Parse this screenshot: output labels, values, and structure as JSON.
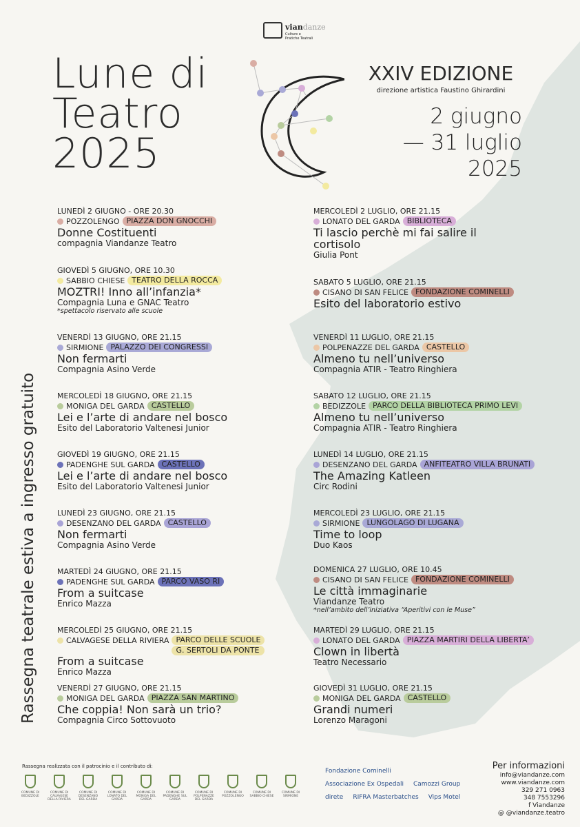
{
  "logo": {
    "name_a": "vian",
    "name_b": "danze",
    "line1": "Culture e",
    "line2": "Pratiche Teatrali"
  },
  "title": {
    "line1": "Lune di",
    "line2": "Teatro",
    "line3": "2025"
  },
  "edition": "XXIV EDIZIONE",
  "direction": "direzione artistica Faustino Ghirardini",
  "dates": {
    "line1": "2 giugno",
    "line2": "— 31 luglio",
    "line3": "2025"
  },
  "vertical_text": "Rassegna teatrale estiva a ingresso gratuito",
  "colors": {
    "sea": "#dfe5e1",
    "pozzolengo": "#d9ada4",
    "sabbio": "#f3ea9f",
    "sirmione": "#a9a9d6",
    "moniga": "#b9cc9c",
    "padenghe": "#6c72b8",
    "calvagese": "#ede3a8",
    "lonato": "#d8aed8",
    "cisano": "#be8b81",
    "polpenazze": "#ecc7a6",
    "bedizzole": "#b3d3a5"
  },
  "events_left": [
    {
      "date": "LUNEDÌ 2 GIUGNO - ORE 20.30",
      "place": "POZZOLENGO",
      "venues": [
        "PIAZZA DON GNOCCHI"
      ],
      "color": "#d9ada4",
      "title": "Donne Costituenti",
      "company": "compagnia Viandanze Teatro"
    },
    {
      "date": "GIOVEDÌ 5 GIUGNO, ORE 10.30",
      "place": "SABBIO CHIESE",
      "venues": [
        "TEATRO DELLA ROCCA"
      ],
      "color": "#f3ea9f",
      "title": "MOZTRI! Inno all’infanzia*",
      "company": "Compagnia Luna e GNAC Teatro",
      "note": "*spettacolo riservato alle scuole"
    },
    {
      "date": "VENERDÌ 13 GIUGNO, ORE 21.15",
      "place": "SIRMIONE",
      "venues": [
        "PALAZZO DEI CONGRESSI"
      ],
      "color": "#a9a9d6",
      "title": "Non fermarti",
      "company": "Compagnia Asino Verde"
    },
    {
      "date": "MERCOLEDÌ 18 GIUGNO, ORE 21.15",
      "place": "MONIGA DEL GARDA",
      "venues": [
        "CASTELLO"
      ],
      "color": "#b9cc9c",
      "title": "Lei e l’arte di andare nel bosco",
      "company": "Esito del Laboratorio Valtenesi Junior"
    },
    {
      "date": "GIOVEDÌ 19 GIUGNO, ORE 21.15",
      "place": "PADENGHE SUL GARDA",
      "venues": [
        "CASTELLO"
      ],
      "color": "#6c72b8",
      "title": "Lei e l’arte di andare nel bosco",
      "company": "Esito del Laboratorio Valtenesi Junior"
    },
    {
      "date": "LUNEDÌ 23 GIUGNO, ORE 21.15",
      "place": "DESENZANO DEL GARDA",
      "venues": [
        "CASTELLO"
      ],
      "color": "#a9a4d6",
      "title": "Non fermarti",
      "company": "Compagnia Asino Verde"
    },
    {
      "date": "MARTEDÌ 24 GIUGNO, ORE 21.15",
      "place": "PADENGHE SUL GARDA",
      "venues": [
        "PARCO VASO RI"
      ],
      "color": "#6c72b8",
      "title": "From a suitcase",
      "company": "Enrico Mazza"
    },
    {
      "date": "MERCOLEDÌ 25 GIUGNO, ORE 21.15",
      "place": "CALVAGESE DELLA RIVIERA",
      "venues": [
        "PARCO DELLE SCUOLE",
        "G. SERTOLI DA PONTE"
      ],
      "color": "#ede3a8",
      "title": "From a suitcase",
      "company": "Enrico Mazza"
    },
    {
      "date": "VENERDÌ 27 GIUGNO, ORE 21.15",
      "place": "MONIGA DEL GARDA",
      "venues": [
        "PIAZZA SAN MARTINO"
      ],
      "color": "#b9cc9c",
      "title": "Che coppia! Non sarà un trio?",
      "company": "Compagnia Circo Sottovuoto"
    }
  ],
  "events_right": [
    {
      "date": "MERCOLEDÌ 2 LUGLIO, ORE 21.15",
      "place": "LONATO DEL GARDA",
      "venues": [
        "BIBLIOTECA"
      ],
      "color": "#d8aed8",
      "title": "Ti lascio perchè mi fai salire il cortisolo",
      "company": "Giulia Pont"
    },
    {
      "date": "SABATO 5 LUGLIO, ORE 21.15",
      "place": "CISANO DI SAN FELICE",
      "venues": [
        "FONDAZIONE COMINELLI"
      ],
      "color": "#be8b81",
      "title": "Esito del laboratorio estivo",
      "company": ""
    },
    {
      "date": "VENERDÌ 11 LUGLIO, ORE 21.15",
      "place": "POLPENAZZE DEL GARDA",
      "venues": [
        "CASTELLO"
      ],
      "color": "#ecc7a6",
      "title": "Almeno tu nell’universo",
      "company": "Compagnia ATIR - Teatro Ringhiera"
    },
    {
      "date": "SABATO 12 LUGLIO, ORE 21.15",
      "place": "BEDIZZOLE",
      "venues": [
        "PARCO DELLA BIBLIOTECA PRIMO LEVI"
      ],
      "color": "#b3d3a5",
      "title": "Almeno tu nell’universo",
      "company": "Compagnia ATIR - Teatro Ringhiera"
    },
    {
      "date": "LUNEDÌ 14 LUGLIO, ORE 21.15",
      "place": "DESENZANO DEL GARDA",
      "venues": [
        "ANFITEATRO VILLA BRUNATI"
      ],
      "color": "#a9a4d6",
      "title": "The Amazing Katleen",
      "company": "Circ Rodini"
    },
    {
      "date": "MERCOLEDÌ 23 LUGLIO, ORE 21.15",
      "place": "SIRMIONE",
      "venues": [
        "LUNGOLAGO DI LUGANA"
      ],
      "color": "#a9a9d6",
      "title": "Time to loop",
      "company": "Duo Kaos"
    },
    {
      "date": "DOMENICA 27 LUGLIO, ORE 10.45",
      "place": "CISANO DI SAN FELICE",
      "venues": [
        "FONDAZIONE COMINELLI"
      ],
      "color": "#be8b81",
      "title": "Le città immaginarie",
      "company": "Viandanze Teatro",
      "note": "*nell’ambito dell’iniziativa “Aperitivi con le Muse”"
    },
    {
      "date": "MARTEDÌ 29 LUGLIO, ORE 21.15",
      "place": "LONATO DEL GARDA",
      "venues": [
        "PIAZZA MARTIRI DELLA LIBERTA’"
      ],
      "color": "#d8aed8",
      "title": "Clown in libertà",
      "company": "Teatro Necessario"
    },
    {
      "date": "GIOVEDÌ 31 LUGLIO, ORE 21.15",
      "place": "MONIGA DEL GARDA",
      "venues": [
        "CASTELLO"
      ],
      "color": "#b9cc9c",
      "title": "Grandi numeri",
      "company": "Lorenzo Maragoni"
    }
  ],
  "footer": {
    "patronage": "Rassegna realizzata con il patrocinio e il contributo di:",
    "crests": [
      "COMUNE DI BEDIZZOLE",
      "COMUNE DI CALVAGESE DELLA RIVIERA",
      "COMUNE DI DESENZANO DEL GARDA",
      "COMUNE DI LONATO DEL GARDA",
      "COMUNE DI MONIGA DEL GARDA",
      "COMUNE DI PADENGHE SUL GARDA",
      "COMUNE DI POLPENAZZE DEL GARDA",
      "COMUNE DI POZZOLENGO",
      "COMUNE DI SABBIO CHIESE",
      "COMUNE DI SIRMIONE"
    ],
    "sponsors": [
      "Fondazione Cominelli",
      "Associazione Ex Ospedali",
      "Camozzi Group",
      "direte",
      "RIFRA Masterbatches",
      "Vips Motel"
    ],
    "info_title": "Per informazioni",
    "info": [
      "info@viandanze.com",
      "www.viandanze.com",
      "329 271 0963",
      "348 7553296",
      "f Viandanze",
      "@ @viandanze.teatro"
    ]
  }
}
